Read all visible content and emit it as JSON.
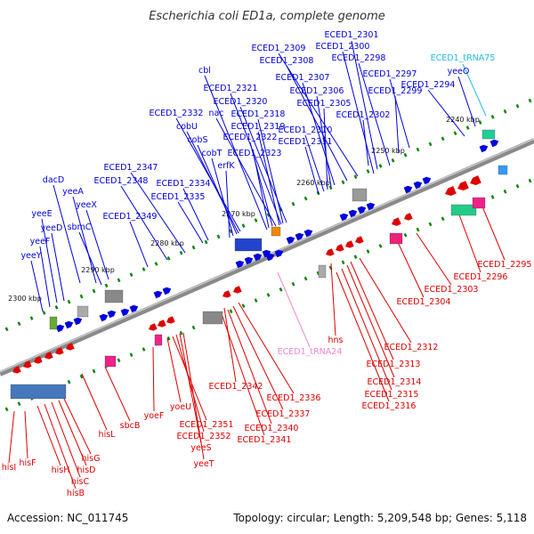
{
  "title": "Escherichia coli ED1a, complete genome",
  "footer": {
    "accession": "Accession: NC_011745",
    "topology": "Topology: circular; Length: 5,209,548 bp; Genes: 5,118"
  },
  "colors": {
    "forward_gene": "#0000dd",
    "reverse_gene": "#dd0000",
    "trna": "#22bbdd",
    "trna_reverse": "#ee88cc",
    "axis": "#7f7f7f",
    "tick": "#118811"
  },
  "ticks": [
    "2240 kbp",
    "2250 kbp",
    "2260 kbp",
    "2270 kbp",
    "2280 kbp",
    "2290 kbp",
    "2300 kbp"
  ],
  "top_labels": [
    "ECED1_2301",
    "ECED1_2300",
    "ECED1_2309",
    "ECED1_2298",
    "ECED1_2308",
    "cbl",
    "ECED1_2307",
    "ECED1_2297",
    "ECED1_2321",
    "ECED1_2306",
    "ECED1_2299",
    "ECED1_2294",
    "ECED1_2320",
    "ECED1_2305",
    "ECED1_2332",
    "nac",
    "ECED1_2318",
    "ECED1_2302",
    "cobU",
    "ECED1_2319",
    "ECED1_2310",
    "cobS",
    "ECED1_2322",
    "ECED1_2311",
    "cobT",
    "ECED1_2323",
    "erfK",
    "ECED1_2347",
    "ECED1_2348",
    "ECED1_2334",
    "ECED1_2335",
    "dacD",
    "yeeA",
    "yeeX",
    "yeeE",
    "sbmC",
    "ECED1_2349",
    "yeeD",
    "yeeF",
    "yeeY"
  ],
  "trna_labels": [
    "ECED1_tRNA75",
    "yeeO"
  ],
  "bottom_labels": [
    "ECED1_2295",
    "ECED1_2296",
    "ECED1_2303",
    "ECED1_2304",
    "hns",
    "ECED1_tRNA24",
    "ECED1_2312",
    "ECED1_2313",
    "ECED1_2314",
    "ECED1_2315",
    "ECED1_2316",
    "ECED1_2342",
    "ECED1_2336",
    "ECED1_2337",
    "yoeU",
    "ECED1_2340",
    "ECED1_2351",
    "ECED1_2341",
    "ECED1_2352",
    "yoeF",
    "yeeS",
    "yeeT",
    "sbcB",
    "hisL",
    "hisG",
    "hisD",
    "hisC",
    "hisB",
    "hisH",
    "hisF",
    "hisI"
  ]
}
